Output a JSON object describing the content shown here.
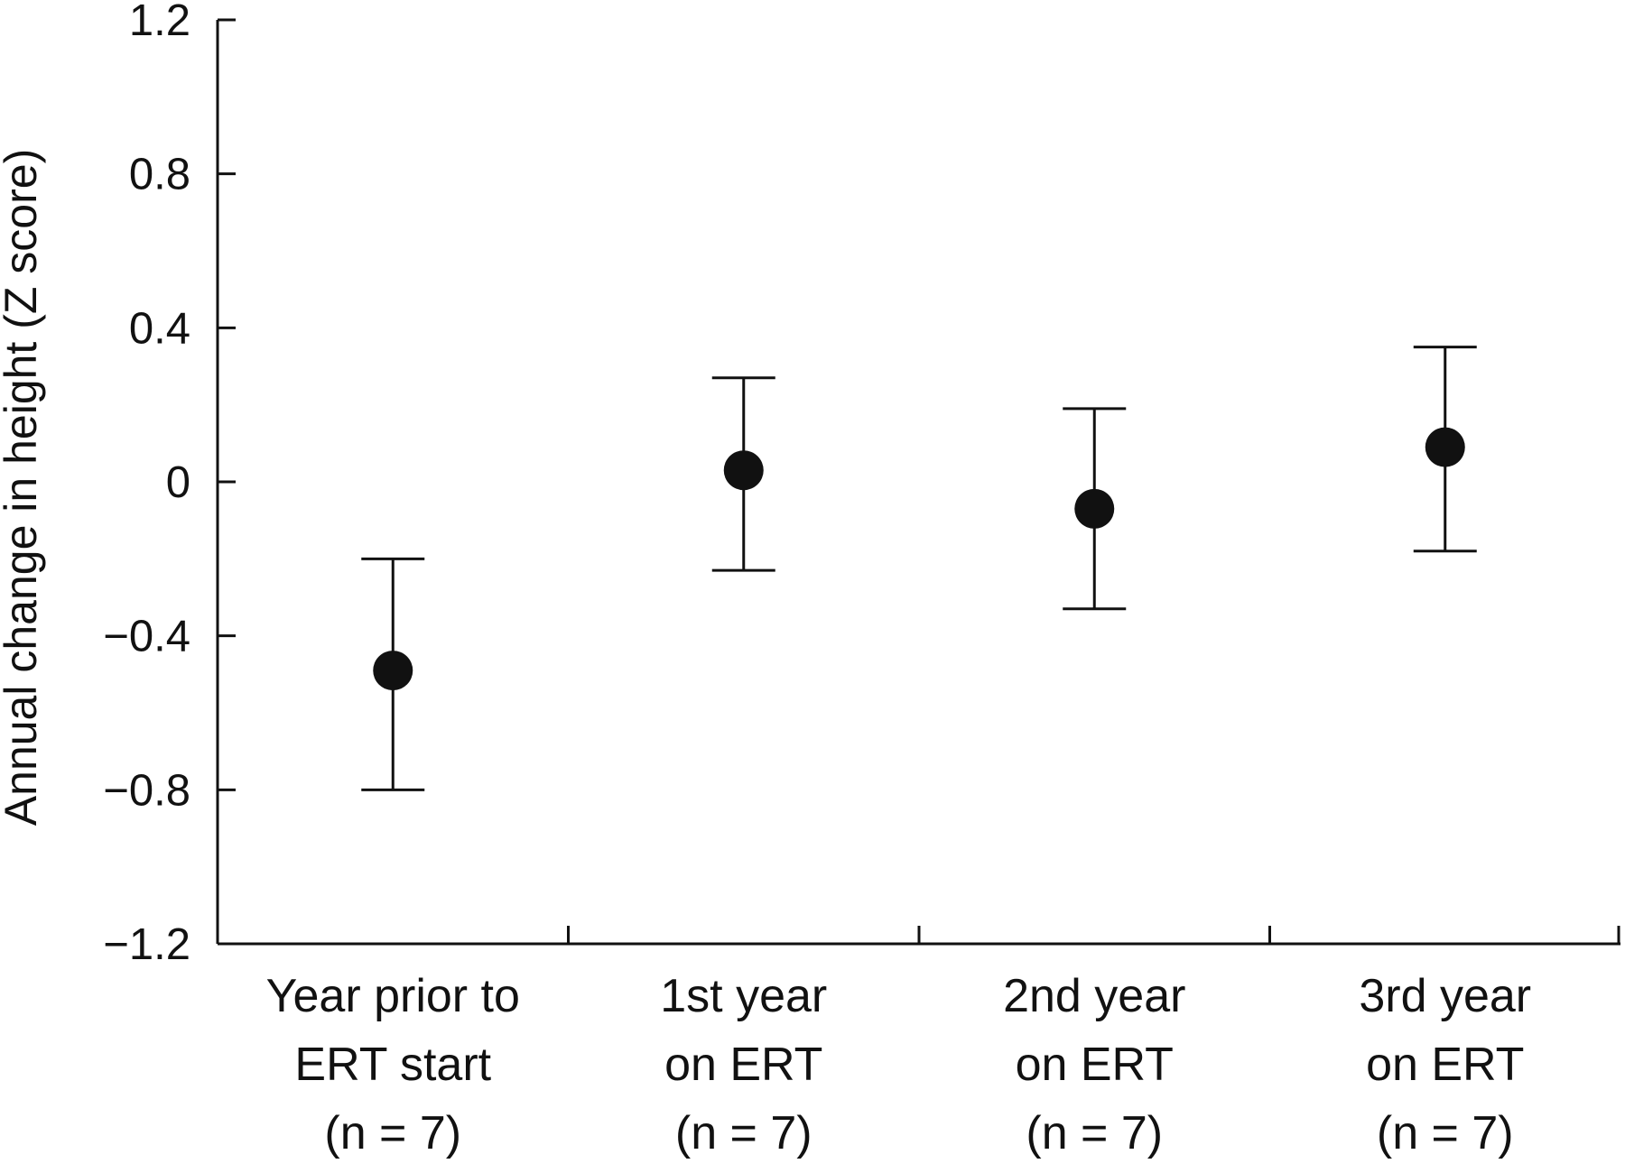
{
  "chart_data": {
    "type": "scatter",
    "title": "",
    "xlabel": "",
    "ylabel": "Annual change in height (Z score)",
    "ylim": [
      -1.2,
      1.2
    ],
    "yticks": [
      1.2,
      0.8,
      0.4,
      0,
      -0.4,
      -0.8,
      -1.2
    ],
    "ytick_labels": [
      "1.2",
      "0.8",
      "0.4",
      "0",
      "−0.4",
      "−0.8",
      "−1.2"
    ],
    "grid": false,
    "legend": "none",
    "categories": [
      [
        "Year prior to",
        "ERT start",
        "(n = 7)"
      ],
      [
        "1st year",
        "on ERT",
        "(n = 7)"
      ],
      [
        "2nd year",
        "on ERT",
        "(n = 7)"
      ],
      [
        "3rd year",
        "on ERT",
        "(n = 7)"
      ]
    ],
    "series": [
      {
        "values": [
          -0.49,
          0.03,
          -0.07,
          0.09
        ],
        "error_low": [
          -0.8,
          -0.23,
          -0.33,
          -0.18
        ],
        "error_high": [
          -0.2,
          0.27,
          0.19,
          0.35
        ]
      }
    ],
    "colors": {
      "marker": "#111111",
      "axis": "#111111"
    }
  }
}
